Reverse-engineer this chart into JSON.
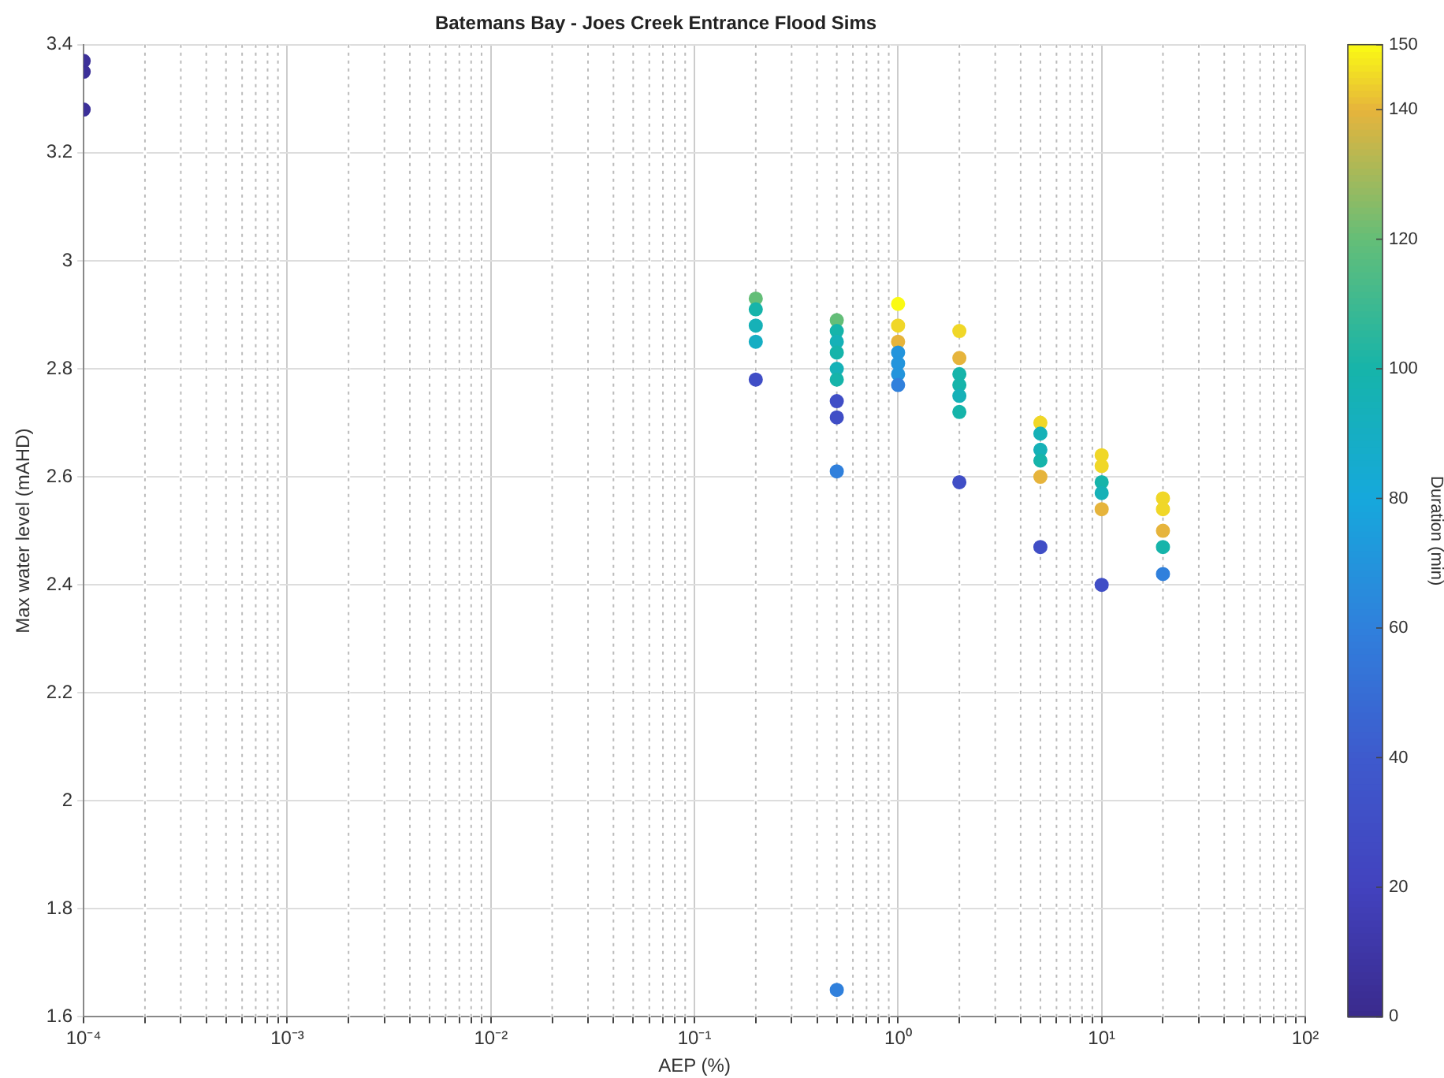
{
  "chart_data": {
    "type": "scatter",
    "title": "Batemans Bay - Joes Creek Entrance Flood Sims",
    "xlabel": "AEP (%)",
    "ylabel": "Max water level (mAHD)",
    "clabel": "Duration (min)",
    "log": "x",
    "grid": true,
    "marker": "circle",
    "legend": false,
    "xlim": [
      0.0001,
      100
    ],
    "ylim": [
      1.6,
      3.4
    ],
    "xticks": [
      {
        "value": 0.0001,
        "label": "10⁻⁴"
      },
      {
        "value": 0.0002,
        "label": null
      },
      {
        "value": 0.0003,
        "label": null
      },
      {
        "value": 0.0004,
        "label": null
      },
      {
        "value": 0.0005,
        "label": null
      },
      {
        "value": 0.0006,
        "label": null
      },
      {
        "value": 0.0007,
        "label": null
      },
      {
        "value": 0.0008,
        "label": null
      },
      {
        "value": 0.0009,
        "label": null
      },
      {
        "value": 0.001,
        "label": "10⁻³"
      },
      {
        "value": 0.002,
        "label": null
      },
      {
        "value": 0.003,
        "label": null
      },
      {
        "value": 0.004,
        "label": null
      },
      {
        "value": 0.005,
        "label": null
      },
      {
        "value": 0.006,
        "label": null
      },
      {
        "value": 0.007,
        "label": null
      },
      {
        "value": 0.008,
        "label": null
      },
      {
        "value": 0.009,
        "label": null
      },
      {
        "value": 0.01,
        "label": "10⁻²"
      },
      {
        "value": 0.02,
        "label": null
      },
      {
        "value": 0.03,
        "label": null
      },
      {
        "value": 0.04,
        "label": null
      },
      {
        "value": 0.05,
        "label": null
      },
      {
        "value": 0.06,
        "label": null
      },
      {
        "value": 0.07,
        "label": null
      },
      {
        "value": 0.08,
        "label": null
      },
      {
        "value": 0.09,
        "label": null
      },
      {
        "value": 0.1,
        "label": "10⁻¹"
      },
      {
        "value": 0.2,
        "label": null
      },
      {
        "value": 0.3,
        "label": null
      },
      {
        "value": 0.4,
        "label": null
      },
      {
        "value": 0.5,
        "label": null
      },
      {
        "value": 0.6,
        "label": null
      },
      {
        "value": 0.7,
        "label": null
      },
      {
        "value": 0.8,
        "label": null
      },
      {
        "value": 0.9,
        "label": null
      },
      {
        "value": 1,
        "label": "10⁰"
      },
      {
        "value": 2,
        "label": null
      },
      {
        "value": 3,
        "label": null
      },
      {
        "value": 4,
        "label": null
      },
      {
        "value": 5,
        "label": null
      },
      {
        "value": 6,
        "label": null
      },
      {
        "value": 7,
        "label": null
      },
      {
        "value": 8,
        "label": null
      },
      {
        "value": 9,
        "label": null
      },
      {
        "value": 10,
        "label": "10¹"
      },
      {
        "value": 20,
        "label": null
      },
      {
        "value": 30,
        "label": null
      },
      {
        "value": 40,
        "label": null
      },
      {
        "value": 50,
        "label": null
      },
      {
        "value": 60,
        "label": null
      },
      {
        "value": 70,
        "label": null
      },
      {
        "value": 80,
        "label": null
      },
      {
        "value": 90,
        "label": null
      },
      {
        "value": 100,
        "label": "10²"
      }
    ],
    "yticks": [
      1.6,
      1.8,
      2,
      2.2,
      2.4,
      2.6,
      2.8,
      3,
      3.2,
      3.4
    ],
    "clim": [
      0,
      150
    ],
    "cticks": [
      0,
      20,
      40,
      60,
      80,
      100,
      120,
      140,
      150
    ],
    "x": [
      0.0001,
      0.0001,
      0.0001,
      0.2,
      0.2,
      0.2,
      0.2,
      0.2,
      0.5,
      0.5,
      0.5,
      0.5,
      0.5,
      0.5,
      0.5,
      0.5,
      0.5,
      0.5,
      1,
      1,
      1,
      1,
      1,
      1,
      1,
      2,
      2,
      2,
      2,
      2,
      2,
      2,
      5,
      5,
      5,
      5,
      5,
      5,
      10,
      10,
      10,
      10,
      10,
      10,
      20,
      20,
      20,
      20,
      20
    ],
    "values": [
      3.37,
      3.35,
      3.28,
      2.93,
      2.91,
      2.88,
      2.85,
      2.78,
      2.89,
      2.87,
      2.85,
      2.83,
      2.8,
      2.78,
      2.74,
      2.71,
      2.61,
      1.65,
      2.92,
      2.88,
      2.85,
      2.83,
      2.81,
      2.79,
      2.77,
      2.87,
      2.82,
      2.79,
      2.77,
      2.75,
      2.72,
      2.59,
      2.7,
      2.68,
      2.65,
      2.63,
      2.6,
      2.47,
      2.64,
      2.62,
      2.59,
      2.57,
      2.54,
      2.4,
      2.56,
      2.54,
      2.5,
      2.47,
      2.42
    ],
    "cvalues": [
      5,
      5,
      5,
      120,
      100,
      95,
      90,
      30,
      120,
      100,
      95,
      100,
      95,
      100,
      30,
      30,
      60,
      60,
      150,
      145,
      140,
      70,
      70,
      70,
      60,
      145,
      140,
      100,
      100,
      95,
      100,
      30,
      145,
      95,
      95,
      100,
      140,
      30,
      145,
      145,
      100,
      95,
      140,
      30,
      145,
      145,
      140,
      100,
      60
    ]
  }
}
